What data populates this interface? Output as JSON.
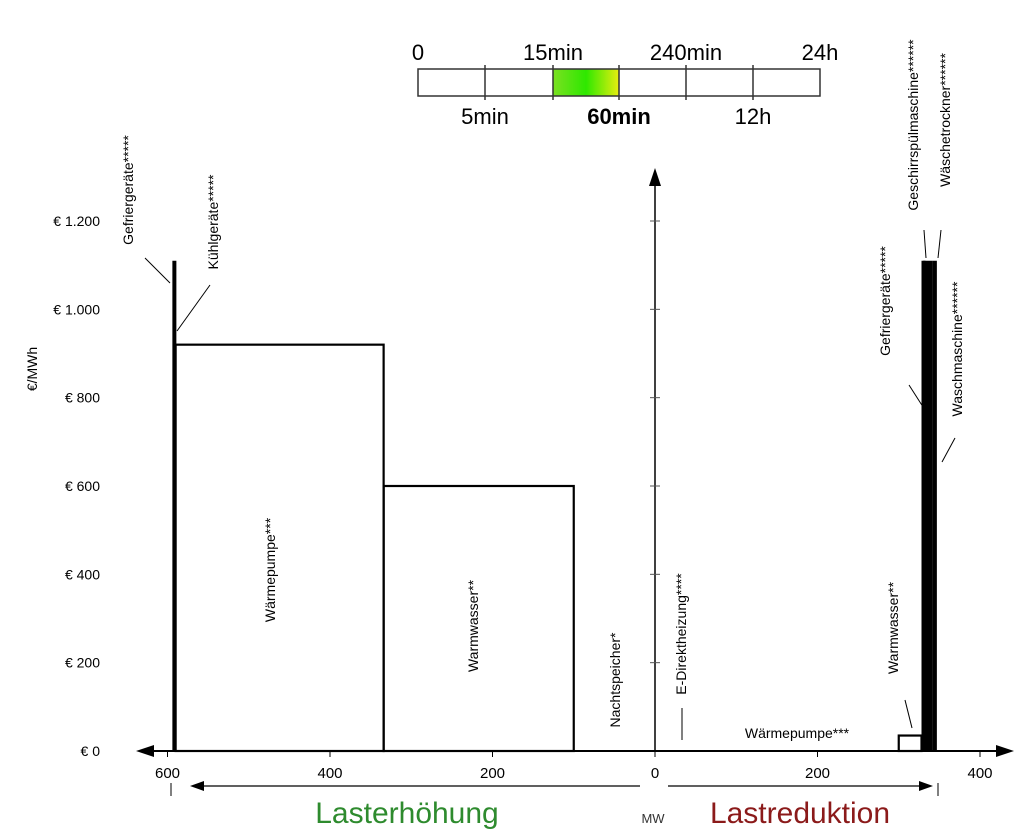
{
  "timescale": {
    "top_labels": [
      "0",
      "15min",
      "240min",
      "24h"
    ],
    "bottom_labels": [
      "5min",
      "60min",
      "12h"
    ],
    "highlight_label": "60min"
  },
  "chart_data": {
    "type": "bar",
    "ylabel": "€/MWh",
    "xlabel": "MW",
    "xlim": [
      -600,
      400
    ],
    "ylim": [
      0,
      1200
    ],
    "y_ticks": [
      {
        "value": 0,
        "label": "€ 0"
      },
      {
        "value": 200,
        "label": "€ 200"
      },
      {
        "value": 400,
        "label": "€ 400"
      },
      {
        "value": 600,
        "label": "€ 600"
      },
      {
        "value": 800,
        "label": "€ 800"
      },
      {
        "value": 1000,
        "label": "€ 1.000"
      },
      {
        "value": 1200,
        "label": "€ 1.200"
      }
    ],
    "x_ticks": [
      {
        "value": -600,
        "label": "600"
      },
      {
        "value": -400,
        "label": "400"
      },
      {
        "value": -200,
        "label": "200"
      },
      {
        "value": 0,
        "label": "0"
      },
      {
        "value": 200,
        "label": "200"
      },
      {
        "value": 400,
        "label": "400"
      }
    ],
    "directions": {
      "left": {
        "label": "Lasterhöhung",
        "color": "#2e8b2e"
      },
      "right": {
        "label": "Lastreduktion",
        "color": "#8b1a1a"
      }
    },
    "load_increase": [
      {
        "label": "Gefriergeräte*****",
        "x0": -594,
        "x1": -591,
        "value": 1110
      },
      {
        "label": "Kühlgeräte*****",
        "x0": -591,
        "x1": -590,
        "value": 920
      },
      {
        "label": "Wärmepumpe***",
        "x0": -590,
        "x1": -334,
        "value": 920
      },
      {
        "label": "Warmwasser**",
        "x0": -334,
        "x1": -100,
        "value": 600
      },
      {
        "label": "Nachtspeicher*",
        "x0": -100,
        "x1": 0,
        "value": 0
      }
    ],
    "load_reduction": [
      {
        "label": "E-Direktheizung****",
        "x0": 0,
        "x1": 45,
        "value": 0
      },
      {
        "label": "Wärmepumpe***",
        "x0": 45,
        "x1": 300,
        "value": 0
      },
      {
        "label": "Warmwasser**",
        "x0": 300,
        "x1": 328,
        "value": 35
      },
      {
        "label": "Gefriergeräte*****",
        "x0": 328,
        "x1": 330,
        "value": 1110
      },
      {
        "label": "Geschirrspülmaschine******",
        "x0": 330,
        "x1": 336,
        "value": 1110
      },
      {
        "label": "Wäschetrockner******",
        "x0": 336,
        "x1": 342,
        "value": 1110
      },
      {
        "label": "Waschmaschine******",
        "x0": 342,
        "x1": 344,
        "value": 1110
      }
    ]
  }
}
